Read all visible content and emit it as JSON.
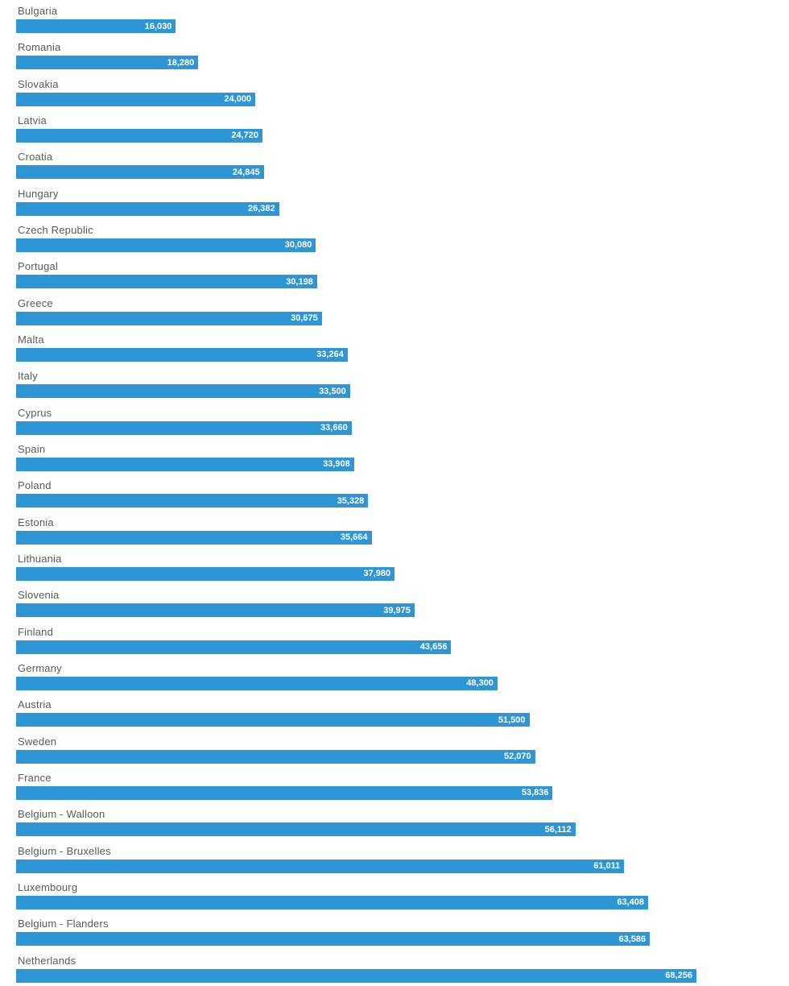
{
  "chart_data": {
    "type": "bar",
    "orientation": "horizontal",
    "title": "",
    "xlabel": "",
    "ylabel": "",
    "grid": false,
    "legend": false,
    "xlim": [
      0,
      68256
    ],
    "bar_color": "#2e96d4",
    "category_label_color": "#595959",
    "value_label_color": "#ffffff",
    "categories": [
      "Bulgaria",
      "Romania",
      "Slovakia",
      "Latvia",
      "Croatia",
      "Hungary",
      "Czech Republic",
      "Portugal",
      "Greece",
      "Malta",
      "Italy",
      "Cyprus",
      "Spain",
      "Poland",
      "Estonia",
      "Lithuania",
      "Slovenia",
      "Finland",
      "Germany",
      "Austria",
      "Sweden",
      "France",
      "Belgium - Walloon",
      "Belgium - Bruxelles",
      "Luxembourg",
      "Belgium - Flanders",
      "Netherlands"
    ],
    "values": [
      16030,
      18280,
      24000,
      24720,
      24845,
      26382,
      30080,
      30198,
      30675,
      33264,
      33500,
      33660,
      33908,
      35328,
      35664,
      37980,
      39975,
      43656,
      48300,
      51500,
      52070,
      53836,
      56112,
      61011,
      63408,
      63586,
      68256
    ],
    "value_labels": [
      "16,030",
      "18,280",
      "24,000",
      "24,720",
      "24,845",
      "26,382",
      "30,080",
      "30,198",
      "30,675",
      "33,264",
      "33,500",
      "33,660",
      "33,908",
      "35,328",
      "35,664",
      "37,980",
      "39,975",
      "43,656",
      "48,300",
      "51,500",
      "52,070",
      "53,836",
      "56,112",
      "61,011",
      "63,408",
      "63,586",
      "68,256"
    ]
  }
}
